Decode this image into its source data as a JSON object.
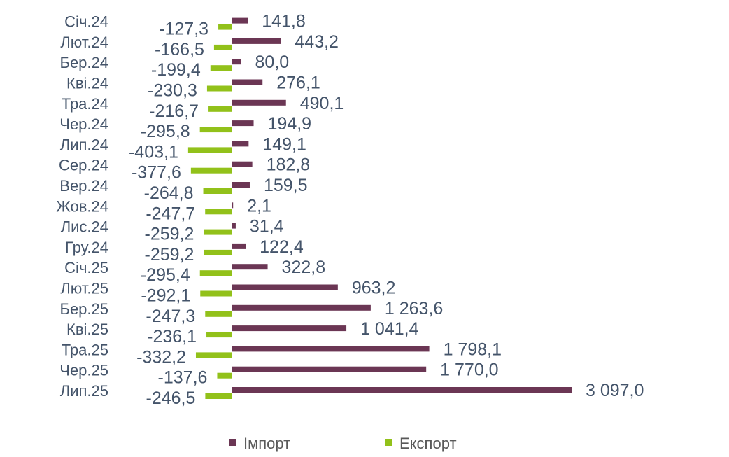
{
  "chart_data": {
    "type": "bar",
    "orientation": "horizontal",
    "categories": [
      "Січ.24",
      "Лют.24",
      "Бер.24",
      "Кві.24",
      "Тра.24",
      "Чер.24",
      "Лип.24",
      "Сер.24",
      "Вер.24",
      "Жов.24",
      "Лис.24",
      "Гру.24",
      "Січ.25",
      "Лют.25",
      "Бер.25",
      "Кві.25",
      "Тра.25",
      "Чер.25",
      "Лип.25"
    ],
    "series": [
      {
        "name": "Імпорт",
        "color": "#6b3654",
        "values": [
          141.8,
          443.2,
          80.0,
          276.1,
          490.1,
          194.9,
          149.1,
          182.8,
          159.5,
          2.1,
          31.4,
          122.4,
          322.8,
          963.2,
          1263.6,
          1041.4,
          1798.1,
          1770.0,
          3097.0
        ],
        "labels": [
          "141,8",
          "443,2",
          "80,0",
          "276,1",
          "490,1",
          "194,9",
          "149,1",
          "182,8",
          "159,5",
          "2,1",
          "31,4",
          "122,4",
          "322,8",
          "963,2",
          "1 263,6",
          "1 041,4",
          "1 798,1",
          "1 770,0",
          "3 097,0"
        ]
      },
      {
        "name": "Експорт",
        "color": "#92c11a",
        "values": [
          -127.3,
          -166.5,
          -199.4,
          -230.3,
          -216.7,
          -295.8,
          -403.1,
          -377.6,
          -264.8,
          -247.7,
          -259.2,
          -259.2,
          -295.4,
          -292.1,
          -247.3,
          -236.1,
          -332.2,
          -137.6,
          -246.5
        ],
        "labels": [
          "-127,3",
          "-166,5",
          "-199,4",
          "-230,3",
          "-216,7",
          "-295,8",
          "-403,1",
          "-377,6",
          "-264,8",
          "-247,7",
          "-259,2",
          "-259,2",
          "-295,4",
          "-292,1",
          "-247,3",
          "-236,1",
          "-332,2",
          "-137,6",
          "-246,5"
        ]
      }
    ],
    "legend": {
      "position": "bottom",
      "items": [
        "Імпорт",
        "Експорт"
      ]
    },
    "grid": false,
    "xlim": [
      -403.1,
      3097.0
    ]
  }
}
